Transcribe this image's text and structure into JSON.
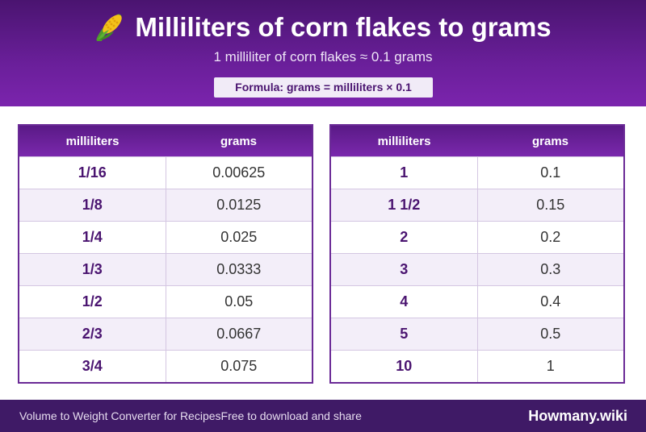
{
  "header": {
    "title": "Milliliters of corn flakes to grams",
    "subtitle": "1 milliliter of corn flakes ≈ 0.1 grams",
    "formula": "Formula: grams = milliliters × 0.1",
    "icon": "corn-emoji-icon"
  },
  "tables": [
    {
      "col_ml": "milliliters",
      "col_g": "grams",
      "rows": [
        {
          "ml": "1/16",
          "g": "0.00625"
        },
        {
          "ml": "1/8",
          "g": "0.0125"
        },
        {
          "ml": "1/4",
          "g": "0.025"
        },
        {
          "ml": "1/3",
          "g": "0.0333"
        },
        {
          "ml": "1/2",
          "g": "0.05"
        },
        {
          "ml": "2/3",
          "g": "0.0667"
        },
        {
          "ml": "3/4",
          "g": "0.075"
        }
      ]
    },
    {
      "col_ml": "milliliters",
      "col_g": "grams",
      "rows": [
        {
          "ml": "1",
          "g": "0.1"
        },
        {
          "ml": "1 1/2",
          "g": "0.15"
        },
        {
          "ml": "2",
          "g": "0.2"
        },
        {
          "ml": "3",
          "g": "0.3"
        },
        {
          "ml": "4",
          "g": "0.4"
        },
        {
          "ml": "5",
          "g": "0.5"
        },
        {
          "ml": "10",
          "g": "1"
        }
      ]
    }
  ],
  "footer": {
    "left_a": "Volume to Weight Converter for Recipes",
    "left_b": "Free to download and share",
    "brand": "Howmany.wiki"
  },
  "colors": {
    "header": "#6a1f9a",
    "footer": "#3f1a66",
    "accent_text": "#4a1470"
  }
}
